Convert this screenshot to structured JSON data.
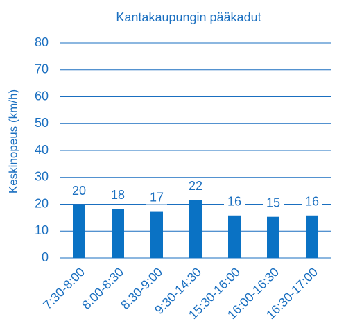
{
  "chart_data": {
    "type": "bar",
    "title": "Kantakaupungin pääkadut",
    "y_label": "Keskinopeus (km/h)",
    "categories": [
      "7:30-8:00",
      "8:00-8:30",
      "8:30-9:00",
      "9:30-14:30",
      "15:30-16:00",
      "16:00-16:30",
      "16:30-17:00"
    ],
    "values": [
      19.8,
      18.2,
      17.4,
      21.6,
      15.8,
      15.3,
      15.8
    ],
    "value_labels": [
      "20",
      "18",
      "17",
      "22",
      "16",
      "15",
      "16"
    ],
    "color": "#0a72c4",
    "ylim": [
      0,
      80
    ],
    "yticks": [
      0,
      10,
      20,
      30,
      40,
      50,
      60,
      70,
      80
    ],
    "grid": true
  }
}
